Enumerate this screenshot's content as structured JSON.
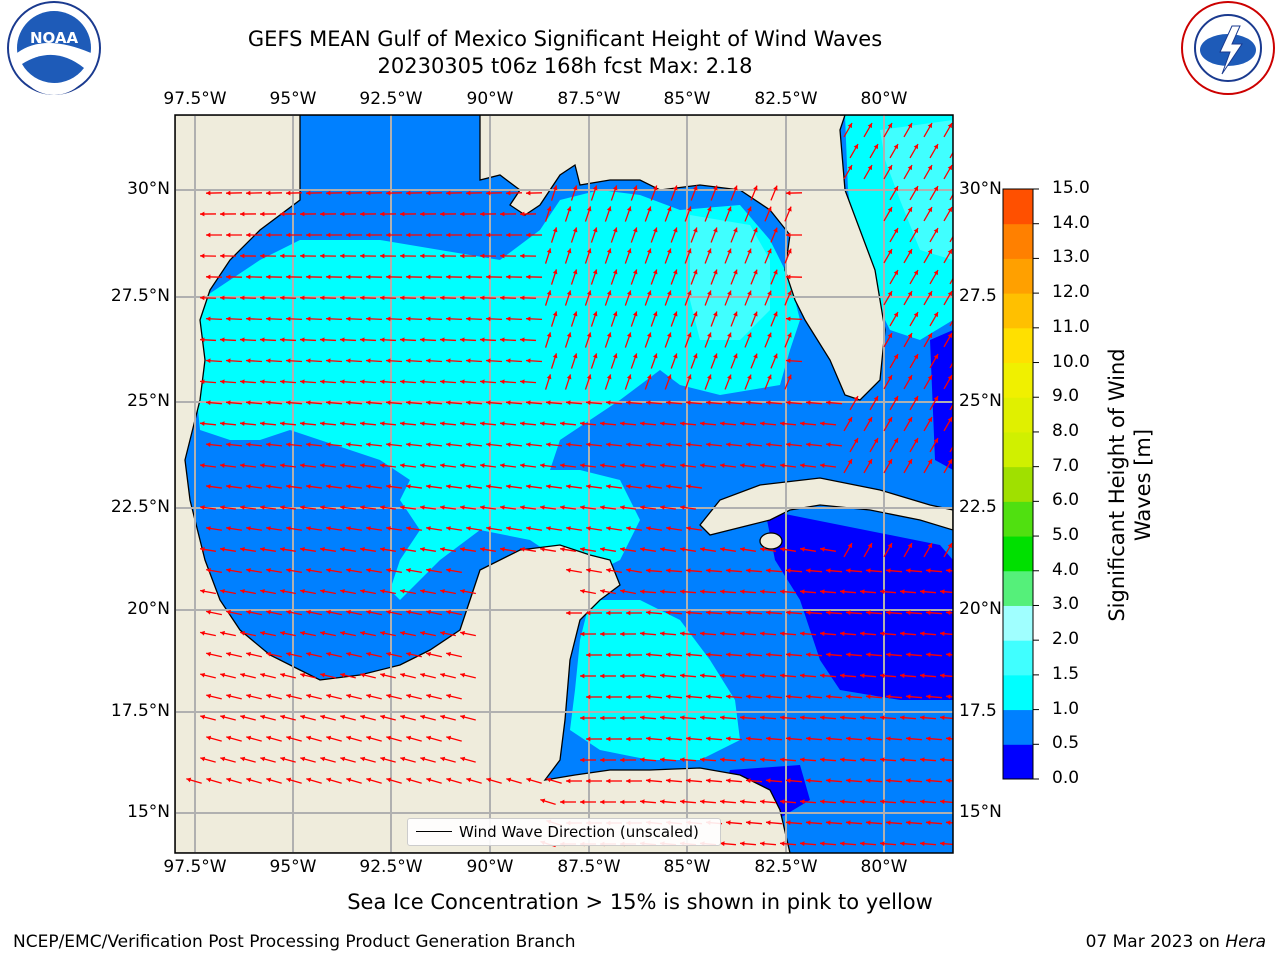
{
  "header": {
    "title_line1": "GEFS MEAN Gulf of Mexico Significant Height of Wind Waves",
    "title_line2": "20230305 t06z 168h fcst   Max: 2.18"
  },
  "logos": {
    "left": {
      "name": "noaa-logo",
      "text": "NOAA",
      "ring_text": "NATIONAL OCEANIC AND ATMOSPHERIC ADMINISTRATION · U.S. DEPARTMENT OF COMMERCE"
    },
    "right": {
      "name": "nws-logo",
      "ring_text": "NATIONAL WEATHER SERVICE"
    }
  },
  "map": {
    "lon_labels": [
      "97.5°W",
      "95°W",
      "92.5°W",
      "90°W",
      "87.5°W",
      "85°W",
      "82.5°W",
      "80°W"
    ],
    "lat_labels": [
      "30°N",
      "27.5°N",
      "25°N",
      "22.5°N",
      "20°N",
      "17.5°N",
      "15°N"
    ],
    "right_lat_labels": [
      "30°N",
      "27.5",
      "25°N",
      "22.5",
      "20°N",
      "17.5",
      "15°N"
    ],
    "legend_label": "Wind Wave Direction (unscaled)",
    "land_color": "#efecdc",
    "arrow_color": "#ff0000"
  },
  "colorbar": {
    "label": "Significant Height of Wind Waves [m]",
    "ticks": [
      "15.0",
      "14.0",
      "13.0",
      "12.0",
      "11.0",
      "10.0",
      "9.0",
      "8.0",
      "7.0",
      "6.0",
      "5.0",
      "4.0",
      "3.0",
      "2.0",
      "1.5",
      "1.0",
      "0.5",
      "0.0"
    ],
    "colors": [
      "#0000ff",
      "#0080ff",
      "#00ffff",
      "#40ffff",
      "#a0ffff",
      "#55f07a",
      "#00e000",
      "#50e010",
      "#a0e000",
      "#d0f000",
      "#e0f000",
      "#f0f000",
      "#ffe000",
      "#ffc000",
      "#ffa000",
      "#ff8000",
      "#ff5000",
      "#ff2000",
      "#ff0000"
    ]
  },
  "footer": {
    "note": "Sea Ice Concentration > 15% is shown in pink to yellow",
    "credit": "NCEP/EMC/Verification Post Processing Product Generation Branch",
    "date": "07 Mar 2023 on",
    "host": "Hera"
  }
}
